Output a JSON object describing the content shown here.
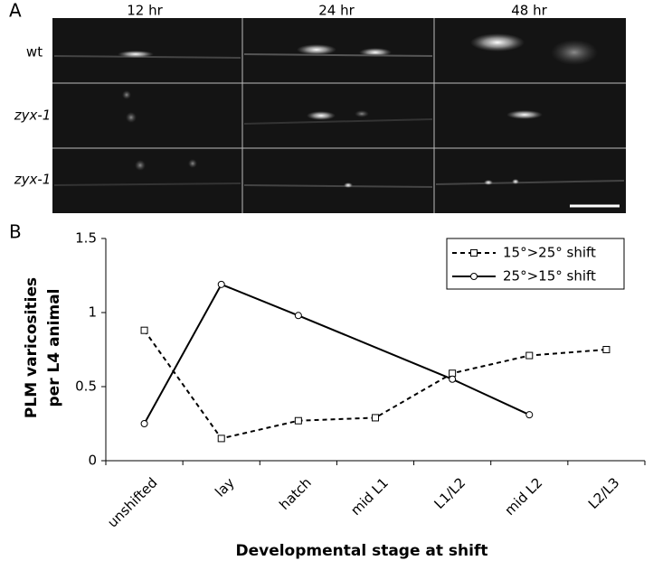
{
  "figure": {
    "panel_a": "A",
    "panel_b": "B",
    "columns": [
      "12 hr",
      "24 hr",
      "48 hr"
    ],
    "rows": [
      "wt",
      "zyx-1",
      "zyx-1"
    ]
  },
  "chart_data": {
    "type": "line",
    "categories": [
      "unshifted",
      "lay",
      "hatch",
      "mid L1",
      "L1/L2",
      "mid L2",
      "L2/L3"
    ],
    "series": [
      {
        "name": "15°>25° shift",
        "color": "#000000",
        "dash": true,
        "marker": "square",
        "x": [
          "unshifted",
          "lay",
          "hatch",
          "mid L1",
          "L1/L2",
          "mid L2",
          "L2/L3"
        ],
        "values": [
          0.88,
          0.15,
          0.27,
          0.29,
          0.59,
          0.71,
          0.75
        ]
      },
      {
        "name": "25°>15° shift",
        "color": "#000000",
        "dash": false,
        "marker": "circle",
        "x": [
          "unshifted",
          "lay",
          "hatch",
          "L1/L2",
          "mid L2"
        ],
        "values": [
          0.25,
          1.19,
          0.98,
          0.55,
          0.31
        ]
      }
    ],
    "x_label": "Developmental stage at shift",
    "y_label": [
      "PLM varicosities",
      "per L4 animal"
    ],
    "ylim": [
      0,
      1.5
    ],
    "yticks": [
      0,
      0.5,
      1,
      1.5
    ],
    "grid": false,
    "legend": "upper-right"
  }
}
